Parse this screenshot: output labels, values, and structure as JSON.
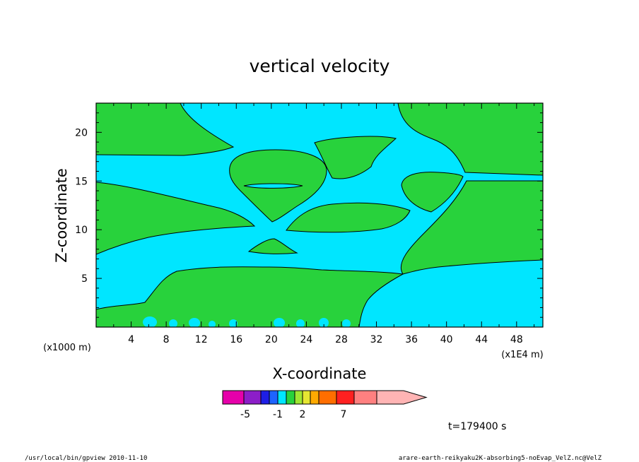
{
  "chart_data": {
    "type": "heatmap",
    "title": "vertical velocity",
    "xlabel": "X-coordinate",
    "ylabel": "Z-coordinate",
    "x_scale_note": "(x1E4 m)",
    "y_scale_note": "(x1000 m)",
    "xlim": [
      0,
      51
    ],
    "ylim": [
      0,
      23
    ],
    "x_ticks": [
      "4",
      "8",
      "12",
      "16",
      "20",
      "24",
      "28",
      "32",
      "36",
      "40",
      "44",
      "48"
    ],
    "y_ticks": [
      "5",
      "10",
      "15",
      "20"
    ],
    "colorbar": {
      "labels": [
        "-5",
        "-1",
        "2",
        "7"
      ],
      "colors": [
        "#e600aa",
        "#8c1ec8",
        "#1e1ee6",
        "#1e64ff",
        "#00e6ff",
        "#28d23c",
        "#a0e632",
        "#e6e632",
        "#ffaa00",
        "#ff6e00",
        "#ff2020",
        "#ff8080",
        "#ffb4b4"
      ],
      "regions_shown": [
        "#00e6ff",
        "#28d23c"
      ]
    },
    "time_label": "t=179400 s",
    "grid": false
  },
  "footer": {
    "left": "/usr/local/bin/gpview  2010-11-10",
    "right": "arare-earth-reikyaku2K-absorbing5-noEvap_VelZ.nc@VelZ"
  }
}
